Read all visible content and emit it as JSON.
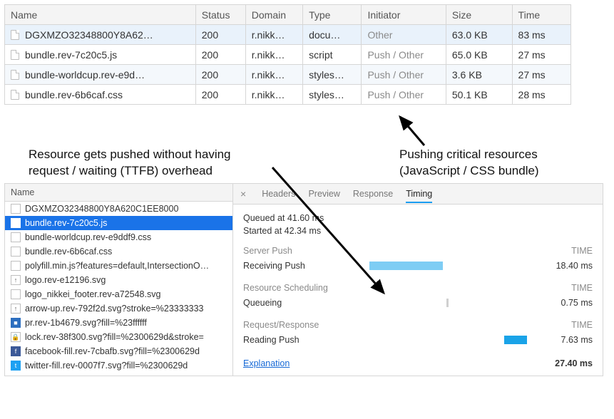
{
  "network_table": {
    "columns": [
      "Name",
      "Status",
      "Domain",
      "Type",
      "Initiator",
      "Size",
      "Time"
    ],
    "rows": [
      {
        "name": "DGXMZO32348800Y8A62…",
        "status": "200",
        "domain": "r.nikk…",
        "type": "docu…",
        "initiator": "Other",
        "size": "63.0 KB",
        "time": "83 ms",
        "selected": true
      },
      {
        "name": "bundle.rev-7c20c5.js",
        "status": "200",
        "domain": "r.nikk…",
        "type": "script",
        "initiator": "Push / Other",
        "size": "65.0 KB",
        "time": "27 ms"
      },
      {
        "name": "bundle-worldcup.rev-e9d…",
        "status": "200",
        "domain": "r.nikk…",
        "type": "styles…",
        "initiator": "Push / Other",
        "size": "3.6 KB",
        "time": "27 ms",
        "alt": true
      },
      {
        "name": "bundle.rev-6b6caf.css",
        "status": "200",
        "domain": "r.nikk…",
        "type": "styles…",
        "initiator": "Push / Other",
        "size": "50.1 KB",
        "time": "28 ms"
      }
    ]
  },
  "annotation_left": "Resource gets pushed without having\nrequest / waiting (TTFB) overhead",
  "annotation_right": "Pushing critical resources\n(JavaScript / CSS bundle)",
  "file_list": {
    "header": "Name",
    "items": [
      {
        "icon": "doc",
        "label": "DGXMZO32348800Y8A620C1EE8000"
      },
      {
        "icon": "js",
        "label": "bundle.rev-7c20c5.js",
        "selected": true
      },
      {
        "icon": "doc",
        "label": "bundle-worldcup.rev-e9ddf9.css"
      },
      {
        "icon": "doc",
        "label": "bundle.rev-6b6caf.css"
      },
      {
        "icon": "doc",
        "label": "polyfill.min.js?features=default,IntersectionO…"
      },
      {
        "icon": "svg",
        "label": "logo.rev-e12196.svg"
      },
      {
        "icon": "doc",
        "label": "logo_nikkei_footer.rev-a72548.svg"
      },
      {
        "icon": "svg",
        "label": "arrow-up.rev-792f2d.svg?stroke=%23333333"
      },
      {
        "icon": "img",
        "label": "pr.rev-1b4679.svg?fill=%23ffffff"
      },
      {
        "icon": "lock",
        "label": "lock.rev-38f300.svg?fill=%2300629d&stroke="
      },
      {
        "icon": "fb",
        "label": "facebook-fill.rev-7cbafb.svg?fill=%2300629d"
      },
      {
        "icon": "tw",
        "label": "twitter-fill.rev-0007f7.svg?fill=%2300629d"
      }
    ]
  },
  "timing_panel": {
    "tabs": {
      "close": "×",
      "items": [
        "Headers",
        "Preview",
        "Response",
        "Timing"
      ],
      "active": "Timing"
    },
    "queued": "Queued at 41.60 ms",
    "started": "Started at 42.34 ms",
    "sections": [
      {
        "title": "Server Push",
        "time_hdr": "TIME",
        "metrics": [
          {
            "label": "Receiving Push",
            "value": "18.40 ms",
            "bar_left_pct": 10,
            "bar_width_pct": 38,
            "bar_color": "#7ecdf4"
          }
        ]
      },
      {
        "title": "Resource Scheduling",
        "time_hdr": "TIME",
        "metrics": [
          {
            "label": "Queueing",
            "value": "0.75 ms",
            "bar_left_pct": 50,
            "bar_width_pct": 1,
            "bar_color": "#d0d0d0"
          }
        ]
      },
      {
        "title": "Request/Response",
        "time_hdr": "TIME",
        "metrics": [
          {
            "label": "Reading Push",
            "value": "7.63 ms",
            "bar_left_pct": 80,
            "bar_width_pct": 12,
            "bar_color": "#1aa3e8"
          }
        ]
      }
    ],
    "explanation": "Explanation",
    "total": "27.40 ms"
  },
  "colors": {
    "row_selected": "#e9f2fb",
    "row_alt": "#f4f8fc",
    "file_selected_bg": "#1a73e8",
    "tab_underline": "#1a9cf0",
    "link": "#1568d6"
  }
}
